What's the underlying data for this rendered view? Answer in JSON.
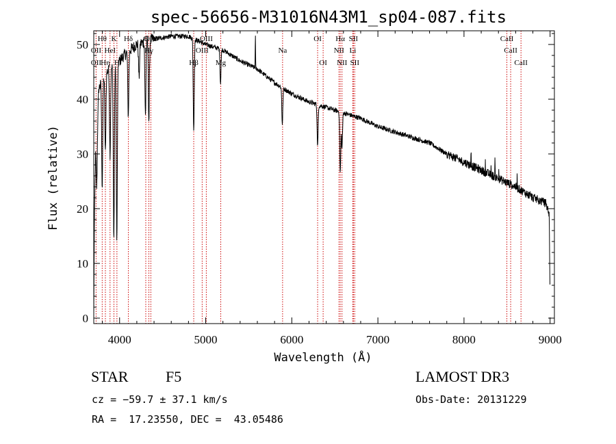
{
  "chart_data": {
    "type": "line",
    "title": "spec-56656-M31016N43M1_sp04-087.fits",
    "xlabel": "Wavelength (Å)",
    "ylabel": "Flux (relative)",
    "xlim": [
      3700,
      9050
    ],
    "ylim": [
      -1,
      52.5
    ],
    "xticks": [
      4000,
      5000,
      6000,
      7000,
      8000,
      9000
    ],
    "yticks": [
      0,
      10,
      20,
      30,
      40,
      50
    ],
    "xtick_labels": [
      "4000",
      "5000",
      "6000",
      "7000",
      "8000",
      "9000"
    ],
    "ytick_labels": [
      "0",
      "10",
      "20",
      "30",
      "40",
      "50"
    ],
    "continuum": [
      {
        "x": 3700,
        "y": 0
      },
      {
        "x": 3705,
        "y": 15
      },
      {
        "x": 3720,
        "y": 30
      },
      {
        "x": 3760,
        "y": 42
      },
      {
        "x": 3850,
        "y": 45
      },
      {
        "x": 3950,
        "y": 46
      },
      {
        "x": 4050,
        "y": 48
      },
      {
        "x": 4200,
        "y": 50
      },
      {
        "x": 4400,
        "y": 51
      },
      {
        "x": 4600,
        "y": 51.5
      },
      {
        "x": 4800,
        "y": 51.5
      },
      {
        "x": 5000,
        "y": 50
      },
      {
        "x": 5200,
        "y": 49
      },
      {
        "x": 5400,
        "y": 47
      },
      {
        "x": 5600,
        "y": 45.5
      },
      {
        "x": 5800,
        "y": 43
      },
      {
        "x": 6000,
        "y": 41
      },
      {
        "x": 6200,
        "y": 39.5
      },
      {
        "x": 6400,
        "y": 38.5
      },
      {
        "x": 6600,
        "y": 37.5
      },
      {
        "x": 6800,
        "y": 36.5
      },
      {
        "x": 7000,
        "y": 35
      },
      {
        "x": 7200,
        "y": 34
      },
      {
        "x": 7400,
        "y": 33
      },
      {
        "x": 7600,
        "y": 32
      },
      {
        "x": 7800,
        "y": 30
      },
      {
        "x": 8000,
        "y": 28.5
      },
      {
        "x": 8200,
        "y": 27
      },
      {
        "x": 8400,
        "y": 25.5
      },
      {
        "x": 8600,
        "y": 24
      },
      {
        "x": 8800,
        "y": 22
      },
      {
        "x": 8950,
        "y": 21
      },
      {
        "x": 8990,
        "y": 19
      },
      {
        "x": 9000,
        "y": 3
      }
    ],
    "absorption_features": [
      {
        "x": 3735,
        "y": 24
      },
      {
        "x": 3798,
        "y": 24
      },
      {
        "x": 3835,
        "y": 30
      },
      {
        "x": 3889,
        "y": 30
      },
      {
        "x": 3933,
        "y": 14
      },
      {
        "x": 3968,
        "y": 14
      },
      {
        "x": 4101,
        "y": 37
      },
      {
        "x": 4226,
        "y": 44
      },
      {
        "x": 4300,
        "y": 37
      },
      {
        "x": 4340,
        "y": 36
      },
      {
        "x": 4861,
        "y": 34
      },
      {
        "x": 5172,
        "y": 43
      },
      {
        "x": 5890,
        "y": 35.5
      },
      {
        "x": 6300,
        "y": 31.5
      },
      {
        "x": 6563,
        "y": 26.5
      },
      {
        "x": 6583,
        "y": 31
      }
    ],
    "emission_features": [
      {
        "x": 5577,
        "y": 52
      }
    ],
    "spectral_lines": [
      {
        "label": "Hθ",
        "x": 3798,
        "row": 0
      },
      {
        "label": "OII",
        "x": 3727,
        "row": 1
      },
      {
        "label": "OII",
        "x": 3727,
        "row": 2
      },
      {
        "label": "Hη",
        "x": 3835,
        "row": 2
      },
      {
        "label": "HeI",
        "x": 3889,
        "row": 1
      },
      {
        "label": "K",
        "x": 3934,
        "row": 0
      },
      {
        "label": "H",
        "x": 3969,
        "row": 2
      },
      {
        "label": "Hδ",
        "x": 4102,
        "row": 0
      },
      {
        "label": "G",
        "x": 4304,
        "row": 0
      },
      {
        "label": "Hγ",
        "x": 4340,
        "row": 1
      },
      {
        "label": "OIII",
        "x": 4363,
        "row": 0
      },
      {
        "label": "Hβ",
        "x": 4861,
        "row": 2
      },
      {
        "label": "OIII",
        "x": 4959,
        "row": 1
      },
      {
        "label": "OIII",
        "x": 5007,
        "row": 0
      },
      {
        "label": "Mg",
        "x": 5175,
        "row": 2
      },
      {
        "label": "Na",
        "x": 5893,
        "row": 1
      },
      {
        "label": "OI",
        "x": 6300,
        "row": 0
      },
      {
        "label": "OI",
        "x": 6364,
        "row": 2
      },
      {
        "label": "Hα",
        "x": 6563,
        "row": 0
      },
      {
        "label": "NII",
        "x": 6548,
        "row": 1
      },
      {
        "label": "NII",
        "x": 6583,
        "row": 2
      },
      {
        "label": "SII",
        "x": 6716,
        "row": 0
      },
      {
        "label": "Li",
        "x": 6708,
        "row": 1
      },
      {
        "label": "SII",
        "x": 6731,
        "row": 2
      },
      {
        "label": "CaII",
        "x": 8498,
        "row": 0
      },
      {
        "label": "CaII",
        "x": 8542,
        "row": 1
      },
      {
        "label": "CaII",
        "x": 8662,
        "row": 2
      }
    ]
  },
  "info": {
    "object_class": "STAR",
    "subclass": "F5",
    "survey": "LAMOST DR3",
    "redshift": "cz = −59.7 ± 37.1 km/s",
    "obs_date": "Obs-Date: 20131229",
    "coords": "RA =  17.23550, DEC =  43.05486"
  },
  "colors": {
    "line_marker": "#cc0000",
    "spectrum": "#000000",
    "axes": "#000000"
  }
}
